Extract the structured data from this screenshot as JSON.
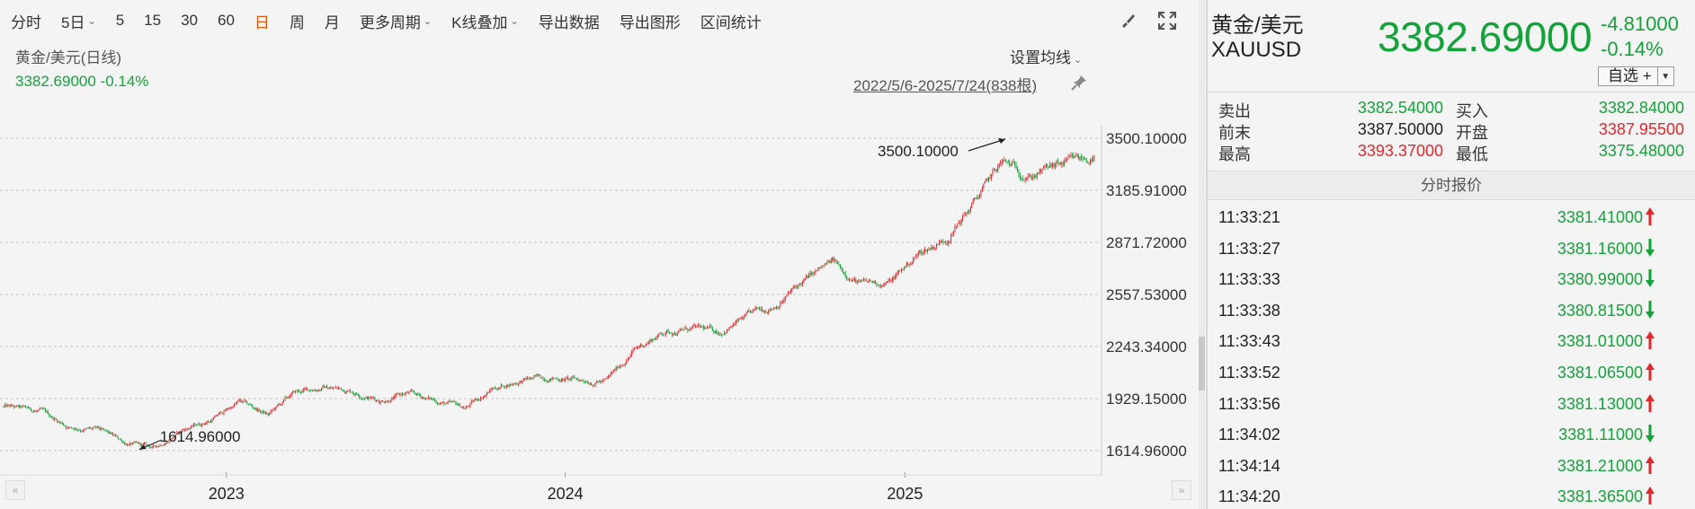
{
  "toolbar": {
    "items": [
      {
        "label": "分时",
        "caret": false,
        "active": false
      },
      {
        "label": "5日",
        "caret": true,
        "active": false
      },
      {
        "label": "5",
        "caret": false,
        "active": false
      },
      {
        "label": "15",
        "caret": false,
        "active": false
      },
      {
        "label": "30",
        "caret": false,
        "active": false
      },
      {
        "label": "60",
        "caret": false,
        "active": false
      },
      {
        "label": "日",
        "caret": false,
        "active": true
      },
      {
        "label": "周",
        "caret": false,
        "active": false
      },
      {
        "label": "月",
        "caret": false,
        "active": false
      },
      {
        "label": "更多周期",
        "caret": true,
        "active": false
      },
      {
        "label": "K线叠加",
        "caret": true,
        "active": false
      },
      {
        "label": "导出数据",
        "caret": false,
        "active": false
      },
      {
        "label": "导出图形",
        "caret": false,
        "active": false
      },
      {
        "label": "区间统计",
        "caret": false,
        "active": false
      }
    ],
    "tools": [
      "brush-icon",
      "fullscreen-icon"
    ]
  },
  "chart": {
    "title": "黄金/美元(日线)",
    "price_line": "3382.69000 -0.14%",
    "ma_settings": "设置均线",
    "date_range": "2022/5/6-2025/7/24(838根)",
    "high_annotation": "3500.10000",
    "low_annotation": "1614.96000",
    "up_color": "#e0282e",
    "down_color": "#14a33a"
  },
  "chart_data": {
    "type": "candlestick",
    "title": "黄金/美元(日线)",
    "y_ticks": [
      3500.1,
      3185.91,
      2871.72,
      2557.53,
      2243.34,
      1929.15,
      1614.96
    ],
    "y_tick_labels": [
      "3500.10000",
      "3185.91000",
      "2871.72000",
      "2557.53000",
      "2243.34000",
      "1929.15000",
      "1614.96000"
    ],
    "ylim": [
      1614.96,
      3500.1
    ],
    "x_labels": [
      "2023",
      "2024",
      "2025"
    ],
    "bar_count": 838,
    "high": 3500.1,
    "low": 1614.96,
    "last": 3382.69,
    "approx_close_path": [
      {
        "date": "2022-05",
        "value": 1880
      },
      {
        "date": "2022-06",
        "value": 1850
      },
      {
        "date": "2022-07",
        "value": 1760
      },
      {
        "date": "2022-08",
        "value": 1740
      },
      {
        "date": "2022-09",
        "value": 1660
      },
      {
        "date": "2022-10",
        "value": 1630
      },
      {
        "date": "2022-11",
        "value": 1740
      },
      {
        "date": "2022-12",
        "value": 1800
      },
      {
        "date": "2023-01",
        "value": 1910
      },
      {
        "date": "2023-02",
        "value": 1830
      },
      {
        "date": "2023-03",
        "value": 1960
      },
      {
        "date": "2023-04",
        "value": 2000
      },
      {
        "date": "2023-05",
        "value": 1980
      },
      {
        "date": "2023-06",
        "value": 1920
      },
      {
        "date": "2023-07",
        "value": 1960
      },
      {
        "date": "2023-08",
        "value": 1915
      },
      {
        "date": "2023-09",
        "value": 1870
      },
      {
        "date": "2023-10",
        "value": 1990
      },
      {
        "date": "2023-11",
        "value": 2040
      },
      {
        "date": "2023-12",
        "value": 2060
      },
      {
        "date": "2024-01",
        "value": 2040
      },
      {
        "date": "2024-02",
        "value": 2040
      },
      {
        "date": "2024-03",
        "value": 2220
      },
      {
        "date": "2024-04",
        "value": 2330
      },
      {
        "date": "2024-05",
        "value": 2350
      },
      {
        "date": "2024-06",
        "value": 2330
      },
      {
        "date": "2024-07",
        "value": 2420
      },
      {
        "date": "2024-08",
        "value": 2500
      },
      {
        "date": "2024-09",
        "value": 2640
      },
      {
        "date": "2024-10",
        "value": 2750
      },
      {
        "date": "2024-11",
        "value": 2620
      },
      {
        "date": "2024-12",
        "value": 2630
      },
      {
        "date": "2025-01",
        "value": 2800
      },
      {
        "date": "2025-02",
        "value": 2900
      },
      {
        "date": "2025-03",
        "value": 3100
      },
      {
        "date": "2025-04",
        "value": 3350
      },
      {
        "date": "2025-05",
        "value": 3280
      },
      {
        "date": "2025-06",
        "value": 3330
      },
      {
        "date": "2025-07",
        "value": 3382.69
      }
    ]
  },
  "quote": {
    "name": "黄金/美元",
    "code": "XAUUSD",
    "price": "3382.69000",
    "change": "-4.81000",
    "change_pct": "-0.14%",
    "watch_label": "自选 +",
    "rows": [
      {
        "l1": "卖出",
        "v1": "3382.54000",
        "c1": "green",
        "l2": "买入",
        "v2": "3382.84000",
        "c2": "green"
      },
      {
        "l1": "前末",
        "v1": "3387.50000",
        "c1": "dark",
        "l2": "开盘",
        "v2": "3387.95500",
        "c2": "red"
      },
      {
        "l1": "最高",
        "v1": "3393.37000",
        "c1": "red",
        "l2": "最低",
        "v2": "3375.48000",
        "c2": "green"
      }
    ],
    "ticks_header": "分时报价",
    "ticks": [
      {
        "time": "11:33:21",
        "price": "3381.41000",
        "dir": "up"
      },
      {
        "time": "11:33:27",
        "price": "3381.16000",
        "dir": "down"
      },
      {
        "time": "11:33:33",
        "price": "3380.99000",
        "dir": "down"
      },
      {
        "time": "11:33:38",
        "price": "3380.81500",
        "dir": "down"
      },
      {
        "time": "11:33:43",
        "price": "3381.01000",
        "dir": "up"
      },
      {
        "time": "11:33:52",
        "price": "3381.06500",
        "dir": "up"
      },
      {
        "time": "11:33:56",
        "price": "3381.13000",
        "dir": "up"
      },
      {
        "time": "11:34:02",
        "price": "3381.11000",
        "dir": "down"
      },
      {
        "time": "11:34:14",
        "price": "3381.21000",
        "dir": "up"
      },
      {
        "time": "11:34:20",
        "price": "3381.36500",
        "dir": "up"
      }
    ]
  }
}
